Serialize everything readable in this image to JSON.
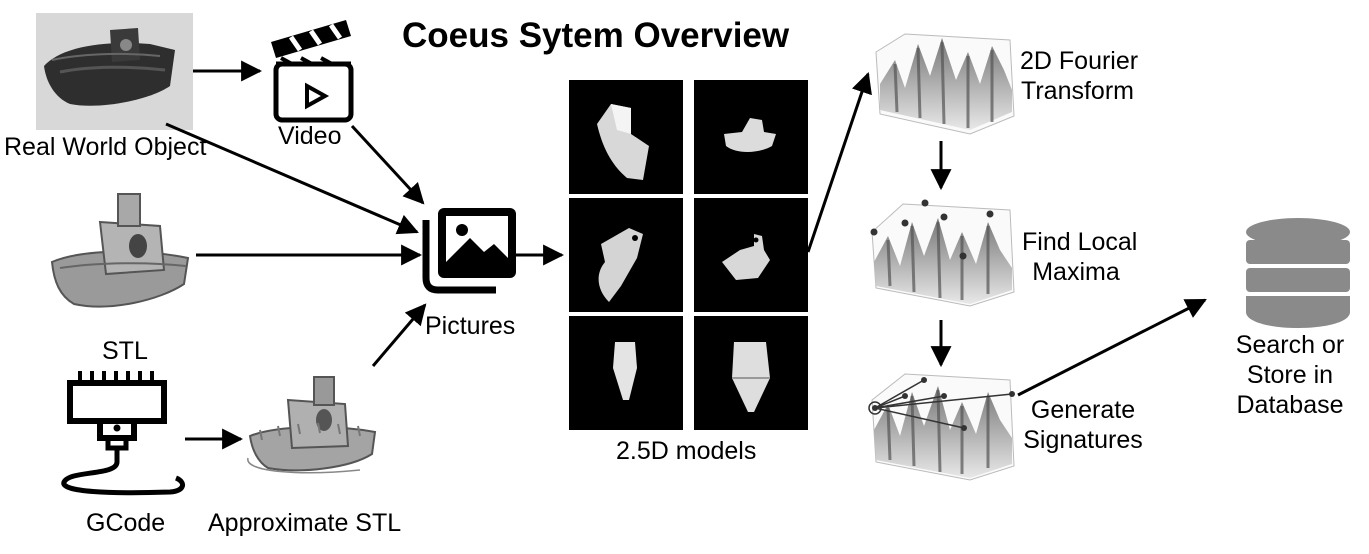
{
  "title": "Coeus Sytem Overview",
  "labels": {
    "real_world_object": "Real World Object",
    "video": "Video",
    "stl": "STL",
    "gcode": "GCode",
    "approximate_stl": "Approximate STL",
    "pictures": "Pictures",
    "models": "2.5D models",
    "fourier_line1": "2D Fourier",
    "fourier_line2": "Transform",
    "maxima_line1": "Find Local",
    "maxima_line2": "Maxima",
    "signatures_line1": "Generate",
    "signatures_line2": "Signatures",
    "database_line1": "Search or",
    "database_line2": "Store in",
    "database_line3": "Database"
  },
  "icons": {
    "video": "clapperboard-icon",
    "pictures": "image-stack-icon",
    "gcode": "3d-printer-nozzle-icon",
    "database": "database-cylinder-icon"
  },
  "colors": {
    "foreground": "#000000",
    "boat_gray": "#9a9a9a",
    "database_gray": "#8a8a8a",
    "photo_background": "#d8d8d8",
    "model_tile_background": "#000000"
  }
}
